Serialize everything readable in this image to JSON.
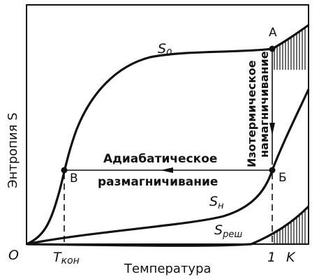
{
  "axes": {
    "y_label": "Энтропия S",
    "x_label": "Температура",
    "origin_label": "O",
    "x_tick_end_num": "1",
    "x_tick_end_unit": "K",
    "x_tick_final": {
      "main": "T",
      "sub": "кон"
    }
  },
  "curves": {
    "s0": {
      "main": "S",
      "sub": "0"
    },
    "sh": {
      "main": "S",
      "sub": "н"
    },
    "sresh": {
      "main": "S",
      "sub": "реш"
    }
  },
  "points": {
    "a": "A",
    "b": "Б",
    "v": "В"
  },
  "processes": {
    "isothermal_line1": "Изотермическое",
    "isothermal_line2": "намагничивание",
    "adiabatic_line1": "Адиабатическое",
    "adiabatic_line2": "размагничивание"
  }
}
